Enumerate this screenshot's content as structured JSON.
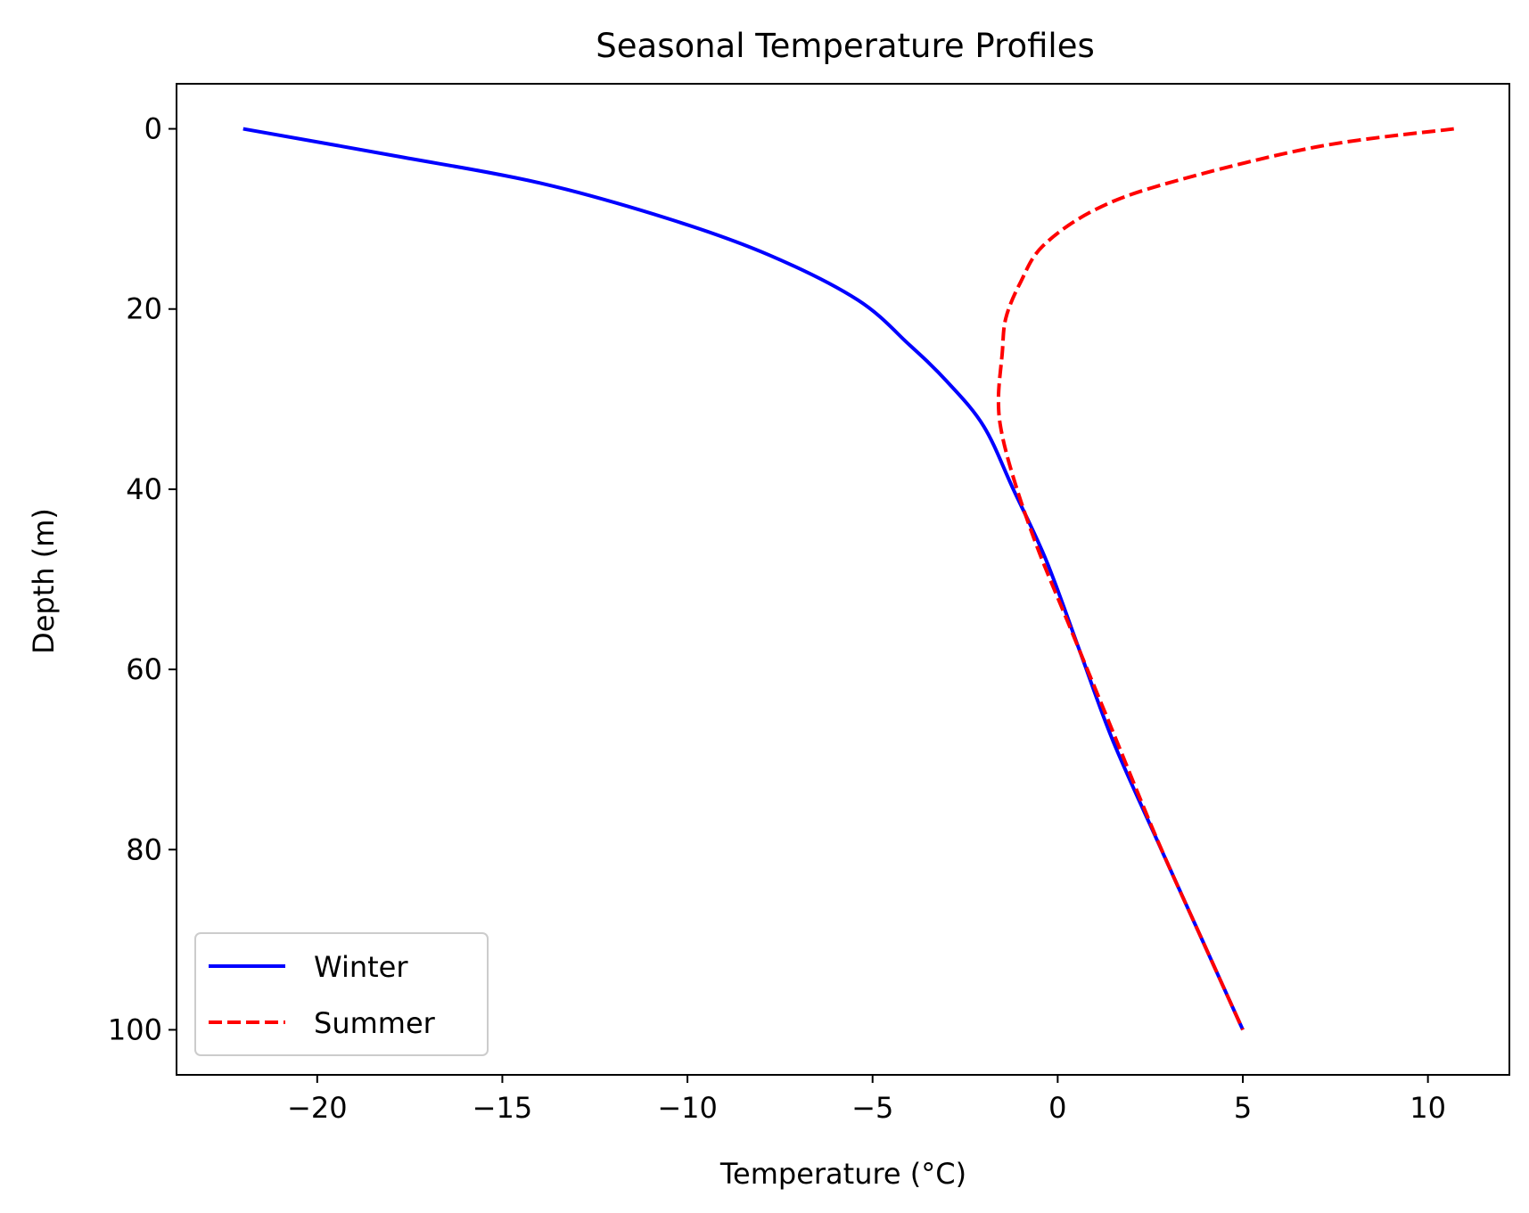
{
  "chart_data": {
    "type": "line",
    "title": "Seasonal Temperature Profiles",
    "xlabel": "Temperature (°C)",
    "ylabel": "Depth (m)",
    "xlim": [
      -23.8,
      12.2
    ],
    "ylim": [
      105,
      -5
    ],
    "y_inverted": true,
    "grid": false,
    "legend_position": "lower left",
    "x_ticks": [
      {
        "value": -20,
        "label": "−20"
      },
      {
        "value": -15,
        "label": "−15"
      },
      {
        "value": -10,
        "label": "−10"
      },
      {
        "value": -5,
        "label": "−5"
      },
      {
        "value": 0,
        "label": "0"
      },
      {
        "value": 5,
        "label": "5"
      },
      {
        "value": 10,
        "label": "10"
      }
    ],
    "y_ticks": [
      {
        "value": 0,
        "label": "0"
      },
      {
        "value": 20,
        "label": "20"
      },
      {
        "value": 40,
        "label": "40"
      },
      {
        "value": 60,
        "label": "60"
      },
      {
        "value": 80,
        "label": "80"
      },
      {
        "value": 100,
        "label": "100"
      }
    ],
    "series": [
      {
        "name": "Winter",
        "color": "#0000ff",
        "line_style": "solid",
        "points": [
          {
            "temperature": -22.0,
            "depth": 0
          },
          {
            "temperature": -17.9,
            "depth": 3
          },
          {
            "temperature": -14.0,
            "depth": 6
          },
          {
            "temperature": -10.5,
            "depth": 10
          },
          {
            "temperature": -7.8,
            "depth": 14
          },
          {
            "temperature": -5.4,
            "depth": 19
          },
          {
            "temperature": -4.0,
            "depth": 24
          },
          {
            "temperature": -3.0,
            "depth": 28
          },
          {
            "temperature": -2.0,
            "depth": 33
          },
          {
            "temperature": -1.2,
            "depth": 40
          },
          {
            "temperature": -0.3,
            "depth": 48
          },
          {
            "temperature": 0.6,
            "depth": 58
          },
          {
            "temperature": 1.5,
            "depth": 68
          },
          {
            "temperature": 2.8,
            "depth": 80
          },
          {
            "temperature": 3.9,
            "depth": 90
          },
          {
            "temperature": 5.0,
            "depth": 100
          }
        ]
      },
      {
        "name": "Summer",
        "color": "#ff0000",
        "line_style": "dashed",
        "points": [
          {
            "temperature": 10.7,
            "depth": 0
          },
          {
            "temperature": 7.0,
            "depth": 2
          },
          {
            "temperature": 3.0,
            "depth": 6
          },
          {
            "temperature": 1.0,
            "depth": 9
          },
          {
            "temperature": -0.4,
            "depth": 13
          },
          {
            "temperature": -1.0,
            "depth": 17
          },
          {
            "temperature": -1.4,
            "depth": 21
          },
          {
            "temperature": -1.5,
            "depth": 25
          },
          {
            "temperature": -1.6,
            "depth": 30
          },
          {
            "temperature": -1.5,
            "depth": 34
          },
          {
            "temperature": -1.1,
            "depth": 40
          },
          {
            "temperature": -0.5,
            "depth": 47
          },
          {
            "temperature": 0.3,
            "depth": 55
          },
          {
            "temperature": 1.4,
            "depth": 66
          },
          {
            "temperature": 2.7,
            "depth": 79
          },
          {
            "temperature": 3.9,
            "depth": 90
          },
          {
            "temperature": 5.0,
            "depth": 100
          }
        ]
      }
    ]
  }
}
